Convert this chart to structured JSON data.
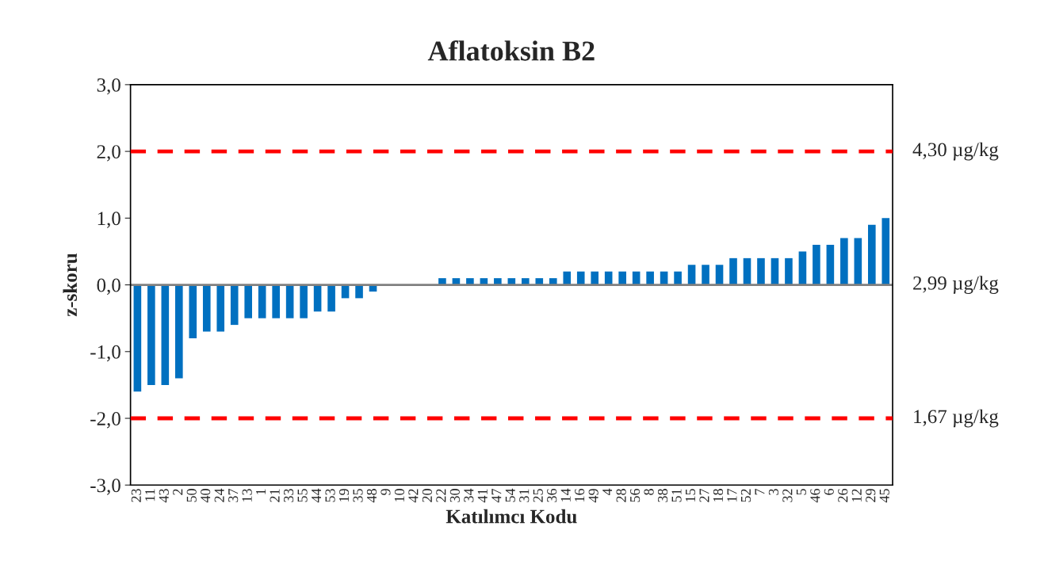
{
  "chart_data": {
    "type": "bar",
    "title": "Aflatoksin B2",
    "xlabel": "Katılımcı Kodu",
    "ylabel": "z-skoru",
    "categories": [
      "23",
      "11",
      "43",
      "2",
      "50",
      "40",
      "24",
      "37",
      "13",
      "1",
      "21",
      "33",
      "55",
      "44",
      "53",
      "19",
      "35",
      "48",
      "9",
      "10",
      "42",
      "20",
      "22",
      "30",
      "34",
      "41",
      "47",
      "54",
      "31",
      "25",
      "36",
      "14",
      "16",
      "49",
      "4",
      "28",
      "56",
      "8",
      "38",
      "51",
      "15",
      "27",
      "18",
      "17",
      "52",
      "7",
      "3",
      "32",
      "5",
      "46",
      "6",
      "26",
      "12",
      "29",
      "45"
    ],
    "values": [
      -1.6,
      -1.5,
      -1.5,
      -1.4,
      -0.8,
      -0.7,
      -0.7,
      -0.6,
      -0.5,
      -0.5,
      -0.5,
      -0.5,
      -0.5,
      -0.4,
      -0.4,
      -0.2,
      -0.2,
      -0.1,
      0,
      0,
      0,
      0,
      0.1,
      0.1,
      0.1,
      0.1,
      0.1,
      0.1,
      0.1,
      0.1,
      0.1,
      0.2,
      0.2,
      0.2,
      0.2,
      0.2,
      0.2,
      0.2,
      0.2,
      0.2,
      0.3,
      0.3,
      0.3,
      0.4,
      0.4,
      0.4,
      0.4,
      0.4,
      0.5,
      0.6,
      0.6,
      0.7,
      0.7,
      0.9,
      1.0
    ],
    "color": "#0070c0",
    "ylim": [
      -3,
      3
    ],
    "yticks": [
      {
        "value": -3,
        "label": "-3,0"
      },
      {
        "value": -2,
        "label": "-2,0"
      },
      {
        "value": -1,
        "label": "-1,0"
      },
      {
        "value": 0,
        "label": "0,0"
      },
      {
        "value": 1,
        "label": "1,0"
      },
      {
        "value": 2,
        "label": "2,0"
      },
      {
        "value": 3,
        "label": "3,0"
      }
    ],
    "grid": false,
    "ref_lines": [
      {
        "axis": "y",
        "value": 2,
        "label": "4,30 µg/kg",
        "color": "#ff0000",
        "line_style": "dashed"
      },
      {
        "axis": "y",
        "value": 0,
        "label": "2,99 µg/kg",
        "color": "#808080",
        "line_style": "solid"
      },
      {
        "axis": "y",
        "value": -2,
        "label": "1,67 µg/kg",
        "color": "#ff0000",
        "line_style": "dashed"
      }
    ]
  }
}
